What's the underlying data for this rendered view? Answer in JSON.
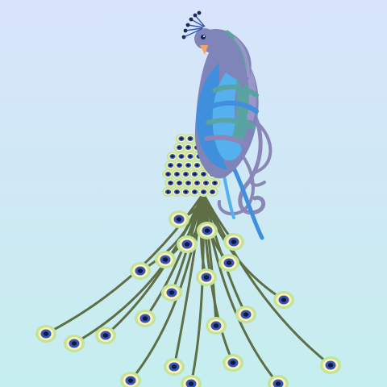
{
  "illustration": {
    "subject": "peacock",
    "colors": {
      "background_top": "#d8e4fb",
      "background_bottom": "#c5eeee",
      "body_lavender": "#7f85b8",
      "body_teal": "#5aa3a3",
      "body_blue": "#3f8fdc",
      "body_sky": "#55b0ee",
      "beak": "#f2a66a",
      "eye": "#1a2a5a",
      "feather_stem": "#5e6e45",
      "eye_outer": "#c2e39a",
      "eye_ring": "#fff0b8",
      "eye_blue": "#3556b8",
      "eye_core": "#0e1a3a"
    }
  }
}
